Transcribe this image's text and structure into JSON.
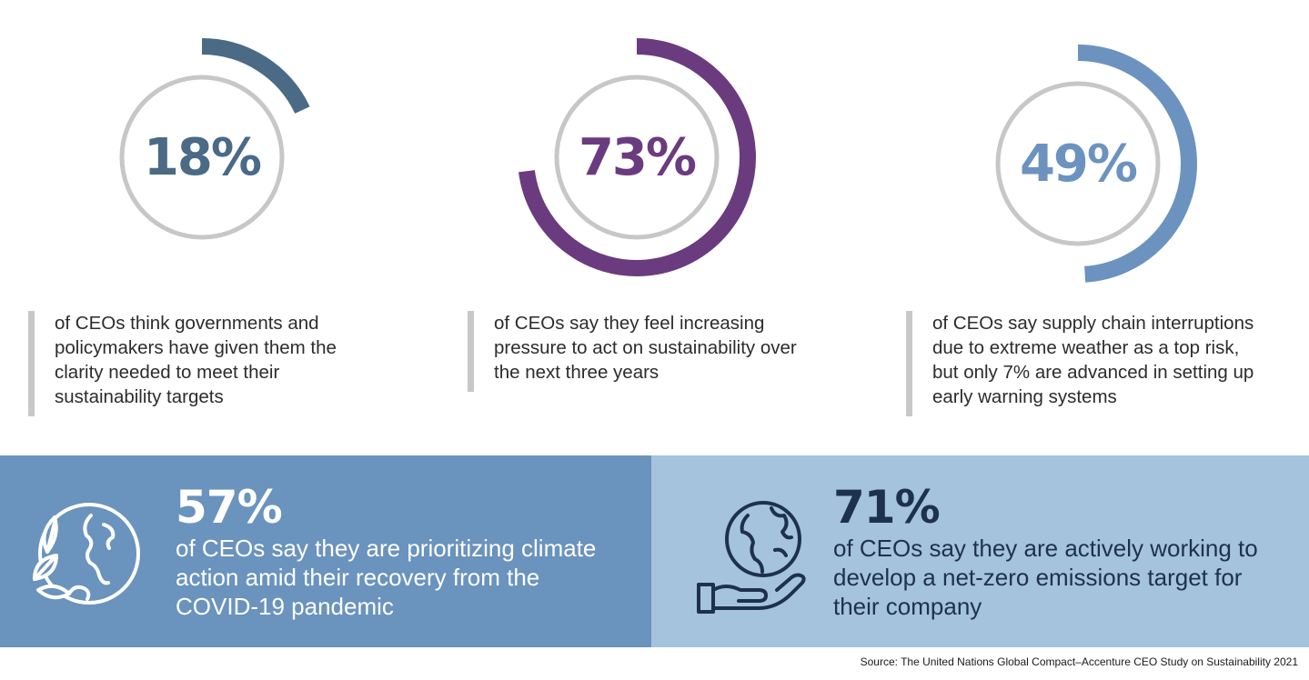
{
  "stats": [
    {
      "value": "18%",
      "fraction": 0.18,
      "color": "#4a6a86",
      "description": "of CEOs think governments and policymakers have given them the clarity needed to meet their sustainability targets"
    },
    {
      "value": "73%",
      "fraction": 0.73,
      "color": "#6b3b7f",
      "description": "of CEOs say they feel increasing pressure to act on sustainability over the next three years"
    },
    {
      "value": "49%",
      "fraction": 0.49,
      "color": "#6c93bf",
      "description": "of CEOs say supply chain interruptions due to extreme weather as a top risk, but only 7% are advanced in setting up early warning systems"
    }
  ],
  "ring_track_color": "#c7c7c7",
  "banners": [
    {
      "value": "57%",
      "text": "of CEOs say they are prioritizing climate action amid their recovery from the COVID-19 pandemic",
      "icon": "globe-leaves-icon",
      "background": "#6a93bd"
    },
    {
      "value": "71%",
      "text": "of CEOs say they are actively working to develop a net-zero emissions target for their company",
      "icon": "hand-globe-icon",
      "background": "#a5c3dc"
    }
  ],
  "source": "Source: The United Nations Global Compact–Accenture CEO Study on Sustainability 2021"
}
